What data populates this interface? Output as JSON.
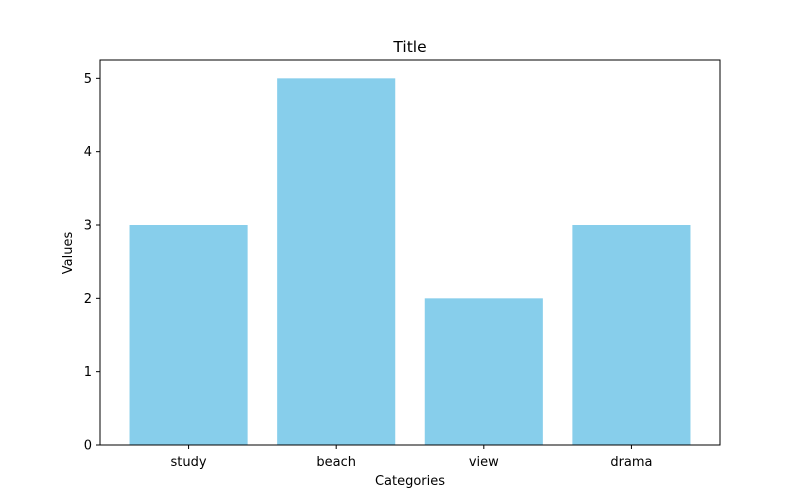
{
  "chart_data": {
    "type": "bar",
    "title": "Title",
    "xlabel": "Categories",
    "ylabel": "Values",
    "categories": [
      "study",
      "beach",
      "view",
      "drama"
    ],
    "values": [
      3,
      5,
      2,
      3
    ],
    "ylim": [
      0,
      5.25
    ],
    "yticks": [
      0,
      1,
      2,
      3,
      4,
      5
    ],
    "grid": false,
    "bar_color": "#87ceeb"
  }
}
